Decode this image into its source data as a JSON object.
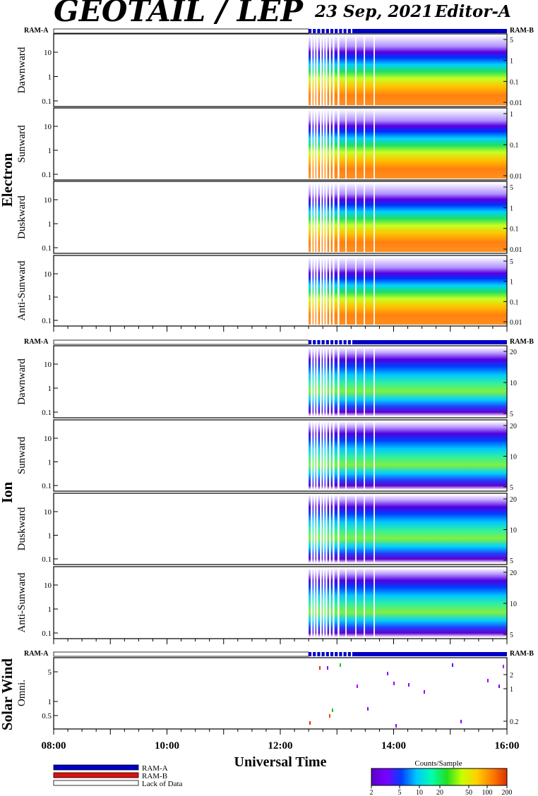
{
  "header": {
    "title": "GEOTAIL / LEP",
    "date": "23 Sep, 2021",
    "editor": "Editor-A"
  },
  "colors": {
    "ram_a": "#0000c8",
    "ram_b": "#e01010",
    "lack": "#ffffff",
    "colorbar": [
      "#5a00c8",
      "#7a00ff",
      "#0040ff",
      "#00c8ff",
      "#00ffb0",
      "#20e020",
      "#c8ff00",
      "#ffd000",
      "#ff8000",
      "#e03000"
    ]
  },
  "sections": {
    "electron": "Electron",
    "ion": "Ion",
    "solar": "Solar Wind"
  },
  "ram_labels": {
    "left": "RAM-A",
    "right": "RAM-B"
  },
  "x_axis": {
    "title": "Universal Time",
    "ticks": [
      "08:00",
      "10:00",
      "12:00",
      "14:00",
      "16:00"
    ],
    "range_hours": [
      8,
      16
    ]
  },
  "legend": {
    "items": [
      {
        "label": "RAM-A",
        "color": "#0000c8"
      },
      {
        "label": "RAM-B",
        "color": "#e01010"
      },
      {
        "label": "Lack of Data",
        "color": "#ffffff"
      }
    ]
  },
  "colorbar": {
    "title": "Counts/Sample",
    "ticks": [
      "2",
      "5",
      "10",
      "20",
      "50",
      "100",
      "200"
    ]
  },
  "chart_data": {
    "type": "heatmap",
    "data_start_hour": 12.5,
    "electron_panels": [
      {
        "label": "Dawnward",
        "y_left": [
          "10",
          "1",
          "0.1"
        ],
        "y_right": [
          "5",
          "1",
          "0.1",
          "0.01"
        ]
      },
      {
        "label": "Sunward",
        "y_left": [
          "10",
          "1",
          "0.1"
        ],
        "y_right": [
          "1",
          "0.1",
          "0.01"
        ]
      },
      {
        "label": "Duskward",
        "y_left": [
          "10",
          "1",
          "0.1"
        ],
        "y_right": [
          "5",
          "1",
          "0.1",
          "0.01"
        ]
      },
      {
        "label": "Anti-Sunward",
        "y_left": [
          "10",
          "1",
          "0.1"
        ],
        "y_right": [
          "5",
          "1",
          "0.1",
          "0.01"
        ]
      }
    ],
    "ion_panels": [
      {
        "label": "Dawnward",
        "y_left": [
          "10",
          "1",
          "0.1"
        ],
        "y_right": [
          "20",
          "10",
          "5"
        ]
      },
      {
        "label": "Sunward",
        "y_left": [
          "10",
          "1",
          "0.1"
        ],
        "y_right": [
          "20",
          "10",
          "5"
        ]
      },
      {
        "label": "Duskward",
        "y_left": [
          "10",
          "1",
          "0.1"
        ],
        "y_right": [
          "20",
          "10",
          "5"
        ]
      },
      {
        "label": "Anti-Sunward",
        "y_left": [
          "10",
          "1",
          "0.1"
        ],
        "y_right": [
          "20",
          "10",
          "5"
        ]
      }
    ],
    "solar_panel": {
      "label": "Omni.",
      "y_left": [
        "5",
        "1",
        "0.5"
      ],
      "y_right": [
        "2",
        "1",
        "0.2"
      ]
    }
  }
}
